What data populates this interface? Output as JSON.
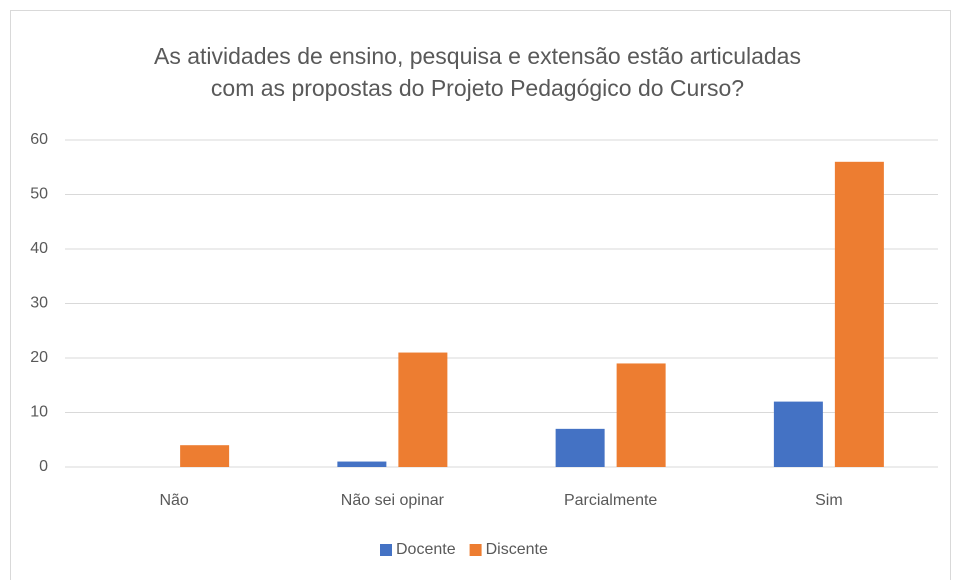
{
  "chart_data": {
    "type": "bar",
    "title": "As atividades de ensino, pesquisa e extensão estão articuladas com as propostas do Projeto Pedagógico do Curso?",
    "categories": [
      "Não",
      "Não sei opinar",
      "Parcialmente",
      "Sim"
    ],
    "series": [
      {
        "name": "Docente",
        "color": "#4472c4",
        "values": [
          0,
          1,
          7,
          12
        ]
      },
      {
        "name": "Discente",
        "color": "#ed7d31",
        "values": [
          4,
          21,
          19,
          56
        ]
      }
    ],
    "ylim": [
      0,
      60
    ],
    "yticks": [
      0,
      10,
      20,
      30,
      40,
      50,
      60
    ],
    "grid": true,
    "legend": "bottom"
  }
}
